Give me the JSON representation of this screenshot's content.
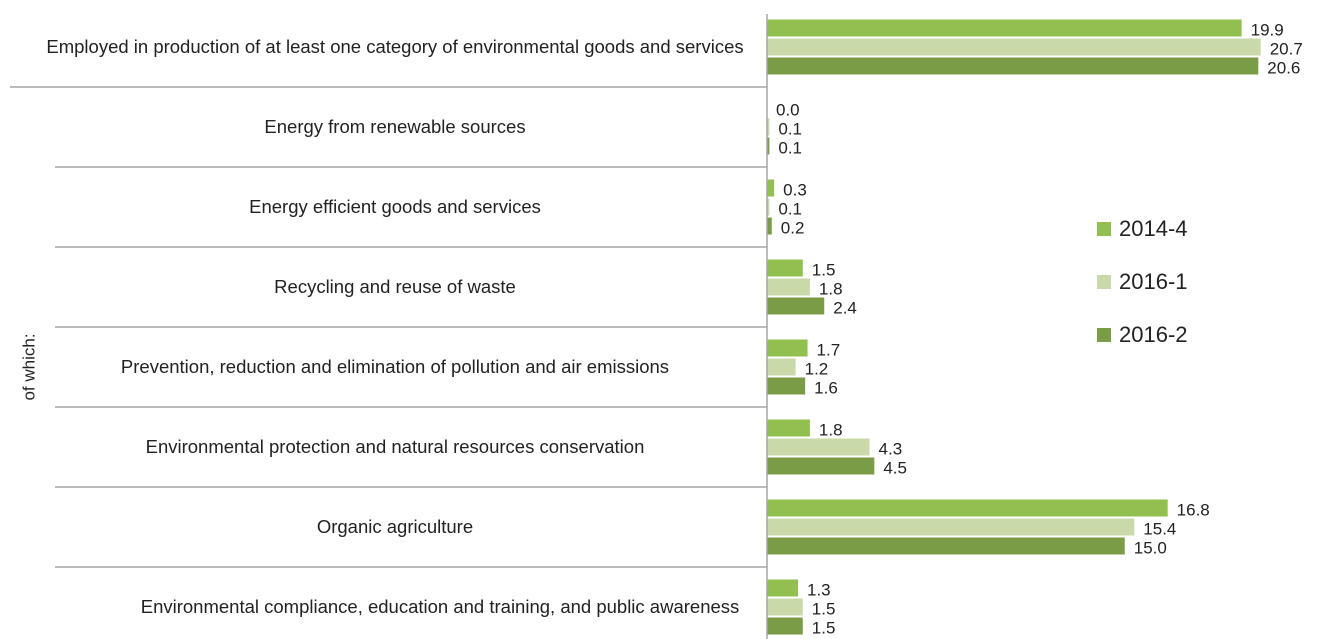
{
  "chart_data": {
    "type": "barh",
    "group_label": "of which:",
    "categories": [
      "Employed in production of at least one category of environmental goods and services",
      "Energy from renewable sources",
      "Energy efficient goods and services",
      "Recycling and reuse of waste",
      "Prevention, reduction and elimination of pollution and air emissions",
      "Environmental protection and natural resources conservation",
      "Organic agriculture",
      "Environmental compliance, education and training, and public awareness"
    ],
    "series": [
      {
        "name": "2014-4",
        "color": "#92c050",
        "values": [
          19.9,
          0,
          0.3,
          1.5,
          1.7,
          1.8,
          16.8,
          1.3
        ],
        "value_labels": [
          "19.9",
          "0.0",
          "0.3",
          "1.5",
          "1.7",
          "1.8",
          "16.8",
          "1.3"
        ]
      },
      {
        "name": "2016-1",
        "color": "#c9d9a9",
        "values": [
          20.7,
          0.1,
          0.1,
          1.8,
          1.2,
          4.3,
          15.4,
          1.5
        ],
        "value_labels": [
          "20.7",
          "0.1",
          "0.1",
          "1.8",
          "1.2",
          "4.3",
          "15.4",
          "1.5"
        ]
      },
      {
        "name": "2016-2",
        "color": "#7b9c46",
        "values": [
          20.6,
          0.1,
          0.2,
          2.4,
          1.6,
          4.5,
          15.0,
          1.5
        ],
        "value_labels": [
          "20.6",
          "0.1",
          "0.2",
          "2.4",
          "1.6",
          "4.5",
          "15.0",
          "1.5"
        ]
      }
    ],
    "xlim": [
      0,
      22
    ],
    "legend": "right"
  }
}
